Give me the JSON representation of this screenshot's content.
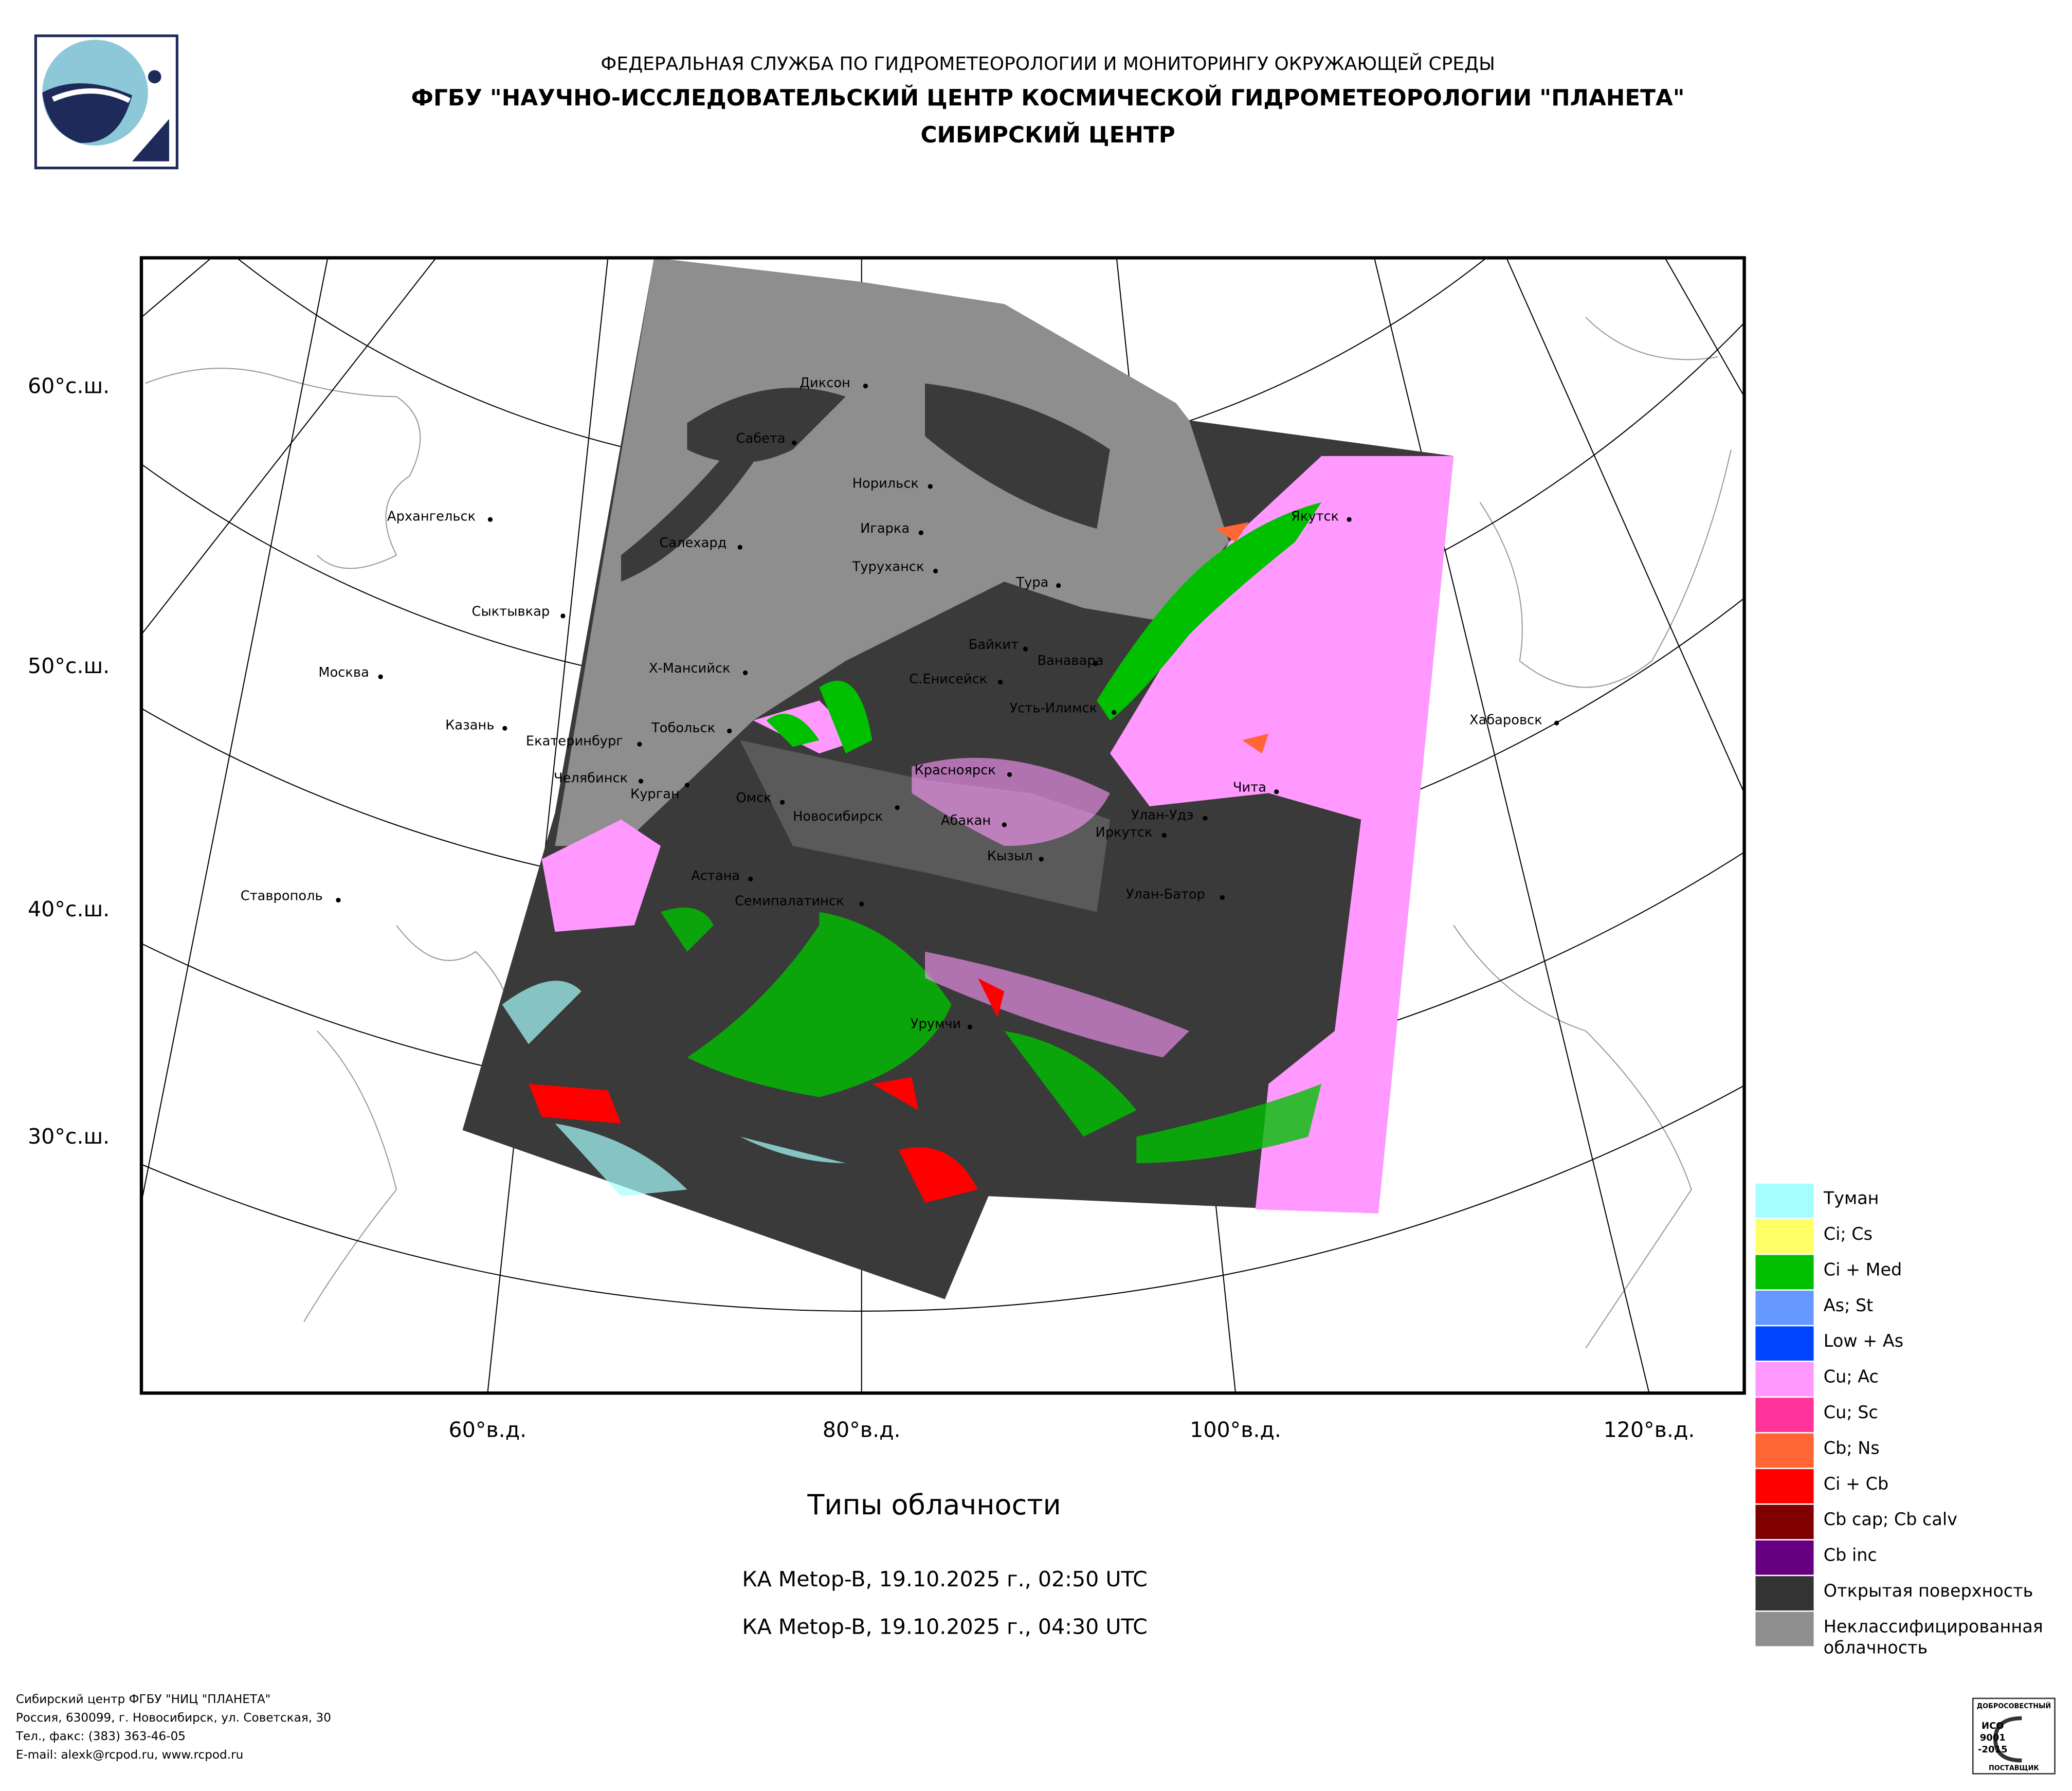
{
  "header": {
    "agency": "ФЕДЕРАЛЬНАЯ СЛУЖБА ПО ГИДРОМЕТЕОРОЛОГИИ И МОНИТОРИНГУ ОКРУЖАЮЩЕЙ СРЕДЫ",
    "organization": "ФГБУ \"НАУЧНО-ИССЛЕДОВАТЕЛЬСКИЙ ЦЕНТР КОСМИЧЕСКОЙ ГИДРОМЕТЕОРОЛОГИИ \"ПЛАНЕТА\"",
    "center": "СИБИРСКИЙ ЦЕНТР"
  },
  "map": {
    "latitude_labels": [
      "60°с.ш.",
      "50°с.ш.",
      "40°с.ш.",
      "30°с.ш."
    ],
    "longitude_labels": [
      "60°в.д.",
      "80°в.д.",
      "100°в.д.",
      "120°в.д."
    ],
    "cities": [
      "Диксон",
      "Сабета",
      "Норильск",
      "Игарка",
      "Салехард",
      "Туруханск",
      "Тура",
      "Архангельск",
      "Сыктывкар",
      "Москва",
      "Байкит",
      "Ванавара",
      "Х-Мансийск",
      "С.Енисейск",
      "Усть-Илимск",
      "Якутск",
      "Хабаровск",
      "Казань",
      "Тобольск",
      "Екатеринбург",
      "Челябинск",
      "Курган",
      "Омск",
      "Новосибирск",
      "Красноярск",
      "Абакан",
      "Чита",
      "Улан-Удэ",
      "Иркутск",
      "Кызыл",
      "Ставрополь",
      "Астана",
      "Семипалатинск",
      "Улан-Батор",
      "Урумчи"
    ]
  },
  "legend": {
    "items": [
      {
        "label": "Туман",
        "color": "#a6ffff"
      },
      {
        "label": "Ci; Cs",
        "color": "#ffff66"
      },
      {
        "label": "Ci + Med",
        "color": "#00c000"
      },
      {
        "label": "As; St",
        "color": "#6699ff"
      },
      {
        "label": "Low + As",
        "color": "#0044ff"
      },
      {
        "label": "Cu; Ac",
        "color": "#ff99ff"
      },
      {
        "label": "Cu; Sc",
        "color": "#ff3399"
      },
      {
        "label": "Cb; Ns",
        "color": "#ff6633"
      },
      {
        "label": "Ci + Cb",
        "color": "#ff0000"
      },
      {
        "label": "Cb cap; Cb calv",
        "color": "#800000"
      },
      {
        "label": "Cb inc",
        "color": "#660080"
      },
      {
        "label": "Открытая поверхность",
        "color": "#333333"
      },
      {
        "label": "Неклассифицированная облачность",
        "color": "#8e8e8e"
      }
    ]
  },
  "caption": {
    "title": "Типы облачности",
    "passes": [
      "КА Metop-B, 19.10.2025 г., 02:50 UTC",
      "КА Metop-B, 19.10.2025 г., 04:30 UTC"
    ]
  },
  "footer": {
    "lines": [
      "Сибирский центр ФГБУ \"НИЦ \"ПЛАНЕТА\"",
      "Россия, 630099, г. Новосибирск, ул. Советская, 30",
      "Тел., факс: (383) 363-46-05",
      "E-mail: alexk@rcpod.ru, www.rcpod.ru"
    ]
  },
  "certificate": {
    "lines": [
      "ДОБРОСОВЕСТНЫЙ",
      "ИСО",
      "9001",
      "-2015",
      "ПОСТАВЩИК"
    ]
  }
}
